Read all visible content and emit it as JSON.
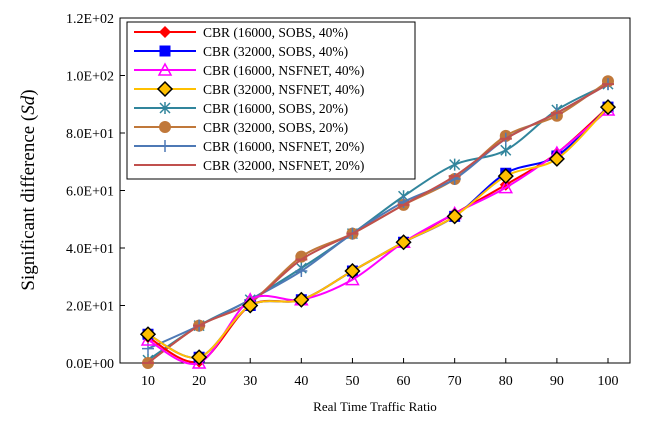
{
  "chart_data": {
    "type": "line",
    "xlabel": "Real Time Traffic Ratio",
    "ylabel_main": "Significant difference (",
    "ylabel_italic": "Sd",
    "ylabel_end": ")",
    "xlim": [
      10,
      100
    ],
    "ylim": [
      0,
      120
    ],
    "x": [
      10,
      20,
      30,
      40,
      50,
      60,
      70,
      80,
      90,
      100
    ],
    "xticks": [
      "10",
      "20",
      "30",
      "40",
      "50",
      "60",
      "70",
      "80",
      "90",
      "100"
    ],
    "yticks": [
      {
        "value": 0,
        "label": "0.0E+00"
      },
      {
        "value": 20,
        "label": "2.0E+01"
      },
      {
        "value": 40,
        "label": "4.0E+01"
      },
      {
        "value": 60,
        "label": "6.0E+01"
      },
      {
        "value": 80,
        "label": "8.0E+01"
      },
      {
        "value": 100,
        "label": "1.0E+02"
      },
      {
        "value": 120,
        "label": "1.2E+02"
      }
    ],
    "grid": false,
    "legend_position": "top-left",
    "series": [
      {
        "name": "CBR (16000, SOBS, 40%)",
        "color": "#ff0000",
        "marker": "diamond",
        "values": [
          9,
          0.5,
          20,
          22,
          32,
          42,
          52,
          62,
          73,
          89
        ]
      },
      {
        "name": "CBR (32000, SOBS, 40%)",
        "color": "#0000ff",
        "marker": "square",
        "values": [
          10,
          2,
          20,
          22,
          32,
          42,
          51,
          66,
          72,
          89
        ]
      },
      {
        "name": "CBR (16000, NSFNET, 40%)",
        "color": "#ff00ff",
        "marker": "triangle",
        "values": [
          8,
          0,
          22,
          22,
          29,
          42,
          52,
          61,
          73,
          88
        ]
      },
      {
        "name": "CBR (32000, NSFNET, 40%)",
        "color": "#ffc000",
        "marker": "diamond-filled",
        "values": [
          10,
          2,
          20,
          22,
          32,
          42,
          51,
          65,
          71,
          89
        ]
      },
      {
        "name": "CBR (16000, SOBS, 20%)",
        "color": "#31859c",
        "marker": "star",
        "values": [
          1,
          13,
          22,
          33,
          45,
          58,
          69,
          74,
          88,
          97
        ]
      },
      {
        "name": "CBR (32000, SOBS, 20%)",
        "color": "#c0783a",
        "marker": "circle",
        "values": [
          0,
          13,
          21,
          37,
          45,
          55,
          64,
          79,
          86,
          98
        ]
      },
      {
        "name": "CBR (16000, NSFNET, 20%)",
        "color": "#4e79b5",
        "marker": "plus",
        "values": [
          5,
          13,
          22,
          32,
          45,
          56,
          64,
          78,
          87,
          97
        ]
      },
      {
        "name": "CBR (32000, NSFNET, 20%)",
        "color": "#c0504d",
        "marker": "dash",
        "values": [
          0,
          13,
          21,
          36,
          45,
          55,
          65,
          78,
          87,
          97
        ]
      }
    ]
  }
}
